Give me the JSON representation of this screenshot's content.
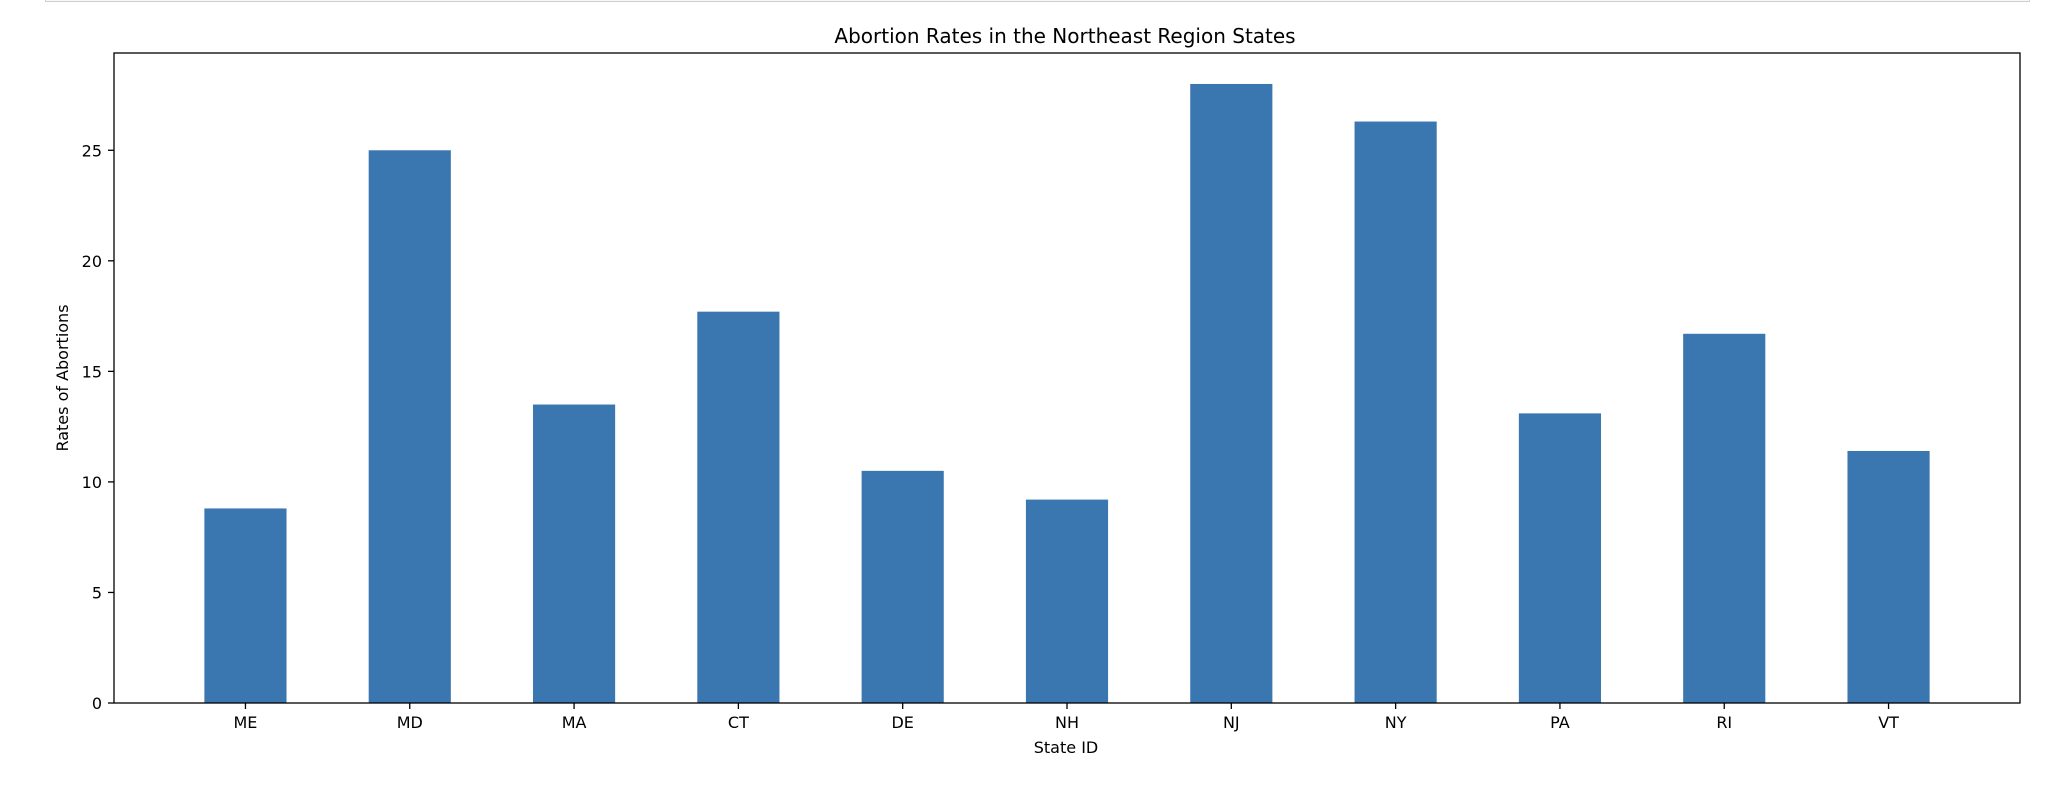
{
  "chart_data": {
    "type": "bar",
    "title": "Abortion Rates in the Northeast Region States",
    "xlabel": "State ID",
    "ylabel": "Rates of Abortions",
    "categories": [
      "ME",
      "MD",
      "MA",
      "CT",
      "DE",
      "NH",
      "NJ",
      "NY",
      "PA",
      "RI",
      "VT"
    ],
    "values": [
      8.8,
      25.0,
      13.5,
      17.7,
      10.5,
      9.2,
      28.0,
      26.3,
      13.1,
      16.7,
      11.4
    ],
    "ylim": [
      0,
      29.4
    ],
    "yticks": [
      0,
      5,
      10,
      15,
      20,
      25
    ],
    "grid": false,
    "colors": {
      "bar": "#3a76af",
      "axis": "#000000"
    }
  }
}
